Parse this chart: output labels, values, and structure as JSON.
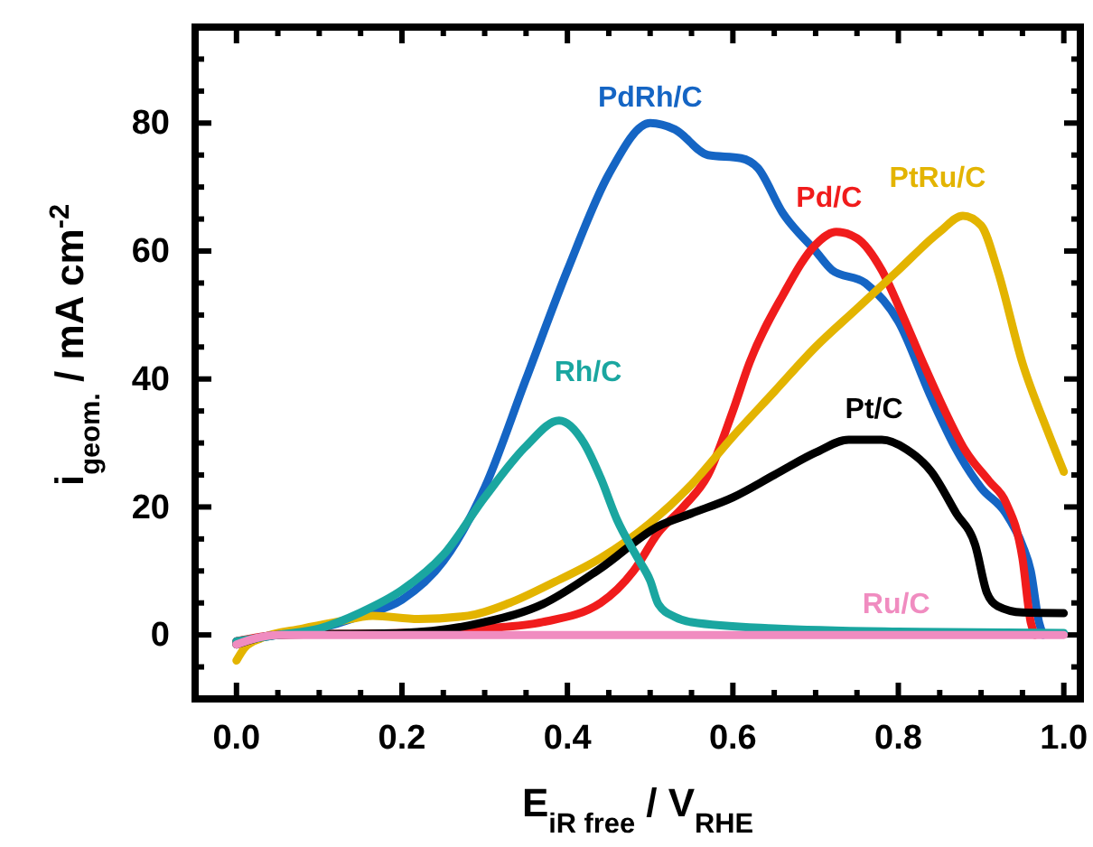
{
  "chart_data": {
    "type": "line",
    "xlabel": "E$_{iR free}$ / V$_{RHE}$",
    "ylabel": "i$_{geom.}$ / mA cm$^{-2}$",
    "xlim": [
      -0.05,
      1.02
    ],
    "ylim": [
      -10,
      95
    ],
    "xticks": [
      {
        "value": 0,
        "label": "0.0"
      },
      {
        "value": 0.05,
        "label": null
      },
      {
        "value": 0.1,
        "label": null
      },
      {
        "value": 0.15,
        "label": null
      },
      {
        "value": 0.2,
        "label": "0.2"
      },
      {
        "value": 0.25,
        "label": null
      },
      {
        "value": 0.3,
        "label": null
      },
      {
        "value": 0.35,
        "label": null
      },
      {
        "value": 0.4,
        "label": "0.4"
      },
      {
        "value": 0.45,
        "label": null
      },
      {
        "value": 0.5,
        "label": null
      },
      {
        "value": 0.55,
        "label": null
      },
      {
        "value": 0.6,
        "label": "0.6"
      },
      {
        "value": 0.65,
        "label": null
      },
      {
        "value": 0.7,
        "label": null
      },
      {
        "value": 0.75,
        "label": null
      },
      {
        "value": 0.8,
        "label": "0.8"
      },
      {
        "value": 0.85,
        "label": null
      },
      {
        "value": 0.9,
        "label": null
      },
      {
        "value": 0.95,
        "label": null
      },
      {
        "value": 1,
        "label": "1.0"
      }
    ],
    "yticks": [
      {
        "value": -5,
        "label": null
      },
      0,
      {
        "value": 5,
        "label": null
      },
      {
        "value": 10,
        "label": null
      },
      {
        "value": 15,
        "label": null
      },
      20,
      {
        "value": 25,
        "label": null
      },
      {
        "value": 30,
        "label": null
      },
      {
        "value": 35,
        "label": null
      },
      40,
      {
        "value": 45,
        "label": null
      },
      {
        "value": 50,
        "label": null
      },
      {
        "value": 55,
        "label": null
      },
      60,
      {
        "value": 65,
        "label": null
      },
      {
        "value": 70,
        "label": null
      },
      {
        "value": 75,
        "label": null
      },
      80,
      {
        "value": 85,
        "label": null
      },
      {
        "value": 90,
        "label": null
      }
    ],
    "grid": false,
    "legend": false,
    "marker": "none",
    "line_style": "solid",
    "series": [
      {
        "name": "PdRh/C",
        "color": "#1565c4",
        "x": [
          0,
          0.05,
          0.1,
          0.15,
          0.2,
          0.25,
          0.3,
          0.35,
          0.4,
          0.45,
          0.5,
          0.53,
          0.57,
          0.61,
          0.63,
          0.66,
          0.7,
          0.72,
          0.76,
          0.8,
          0.84,
          0.87,
          0.9,
          0.93,
          0.95,
          0.96,
          0.97,
          0.975
        ],
        "values": [
          -1,
          0,
          1,
          3,
          5.5,
          11.5,
          23,
          40,
          57,
          72,
          80,
          79,
          75,
          74.5,
          73,
          66,
          60,
          57,
          55,
          49,
          37,
          29,
          23,
          19,
          14,
          10,
          2,
          0
        ]
      },
      {
        "name": "Pd/C",
        "color": "#f01c1c",
        "x": [
          0,
          0.05,
          0.2,
          0.3,
          0.37,
          0.44,
          0.48,
          0.51,
          0.54,
          0.57,
          0.6,
          0.62,
          0.66,
          0.7,
          0.725,
          0.75,
          0.78,
          0.805,
          0.83,
          0.86,
          0.88,
          0.91,
          0.93,
          0.95,
          0.96,
          0.965
        ],
        "values": [
          -1,
          0,
          0.3,
          1,
          2,
          5,
          10,
          16,
          20,
          25,
          35,
          42.5,
          53,
          61,
          63,
          62,
          57,
          50,
          42.5,
          34,
          29,
          24,
          20.7,
          12,
          2,
          0
        ]
      },
      {
        "name": "PtRu/C",
        "color": "#e3b400",
        "x": [
          0,
          0.01,
          0.03,
          0.08,
          0.12,
          0.165,
          0.22,
          0.28,
          0.33,
          0.38,
          0.44,
          0.5,
          0.55,
          0.6,
          0.65,
          0.7,
          0.75,
          0.8,
          0.85,
          0.878,
          0.9,
          0.92,
          0.95,
          0.98,
          1
        ],
        "values": [
          -4,
          -2,
          -0.5,
          1,
          2,
          3,
          2.5,
          3,
          5,
          8,
          12,
          17.5,
          23.5,
          31,
          38,
          45,
          51,
          57,
          63,
          65.5,
          64,
          57,
          42.5,
          32,
          25.5
        ]
      },
      {
        "name": "Pt/C",
        "color": "#000000",
        "x": [
          0,
          0.05,
          0.2,
          0.3,
          0.37,
          0.44,
          0.51,
          0.55,
          0.6,
          0.65,
          0.7,
          0.74,
          0.78,
          0.81,
          0.84,
          0.87,
          0.893,
          0.907,
          0.92,
          0.95,
          1
        ],
        "values": [
          -1.5,
          0,
          0.3,
          2,
          4.8,
          10.4,
          17,
          19,
          21.5,
          25,
          28.5,
          30.5,
          30.5,
          29,
          25.5,
          19,
          14,
          6.6,
          4.5,
          3.5,
          3.4
        ]
      },
      {
        "name": "Rh/C",
        "color": "#1aa6a0",
        "x": [
          0,
          0.05,
          0.1,
          0.15,
          0.2,
          0.25,
          0.3,
          0.35,
          0.39,
          0.42,
          0.44,
          0.46,
          0.485,
          0.5,
          0.51,
          0.53,
          0.55,
          0.65,
          0.8,
          1
        ],
        "values": [
          -1,
          0,
          1,
          3.5,
          7,
          12.5,
          21.5,
          29.5,
          33.5,
          30,
          24.6,
          18,
          12,
          8.5,
          4.8,
          2.8,
          2,
          1,
          0.5,
          0.3
        ]
      },
      {
        "name": "Ru/C",
        "color": "#f08cc0",
        "x": [
          0,
          0.05,
          0.5,
          1
        ],
        "values": [
          -1.5,
          0,
          0,
          0
        ]
      }
    ]
  }
}
